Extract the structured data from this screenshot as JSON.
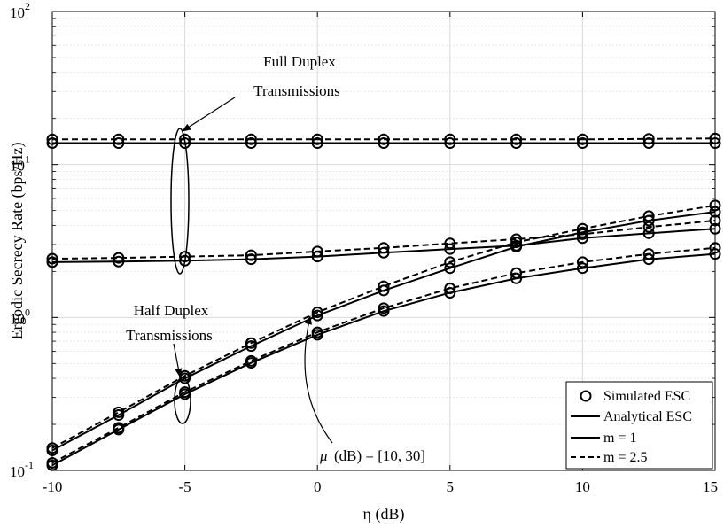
{
  "chart_data": {
    "type": "line",
    "title": "",
    "xlabel": "η (dB)",
    "ylabel": "Ergodic Secrecy Rate (bps/Hz)",
    "xlim": [
      -10,
      15
    ],
    "ylim": [
      0.1,
      100
    ],
    "y_scale": "log",
    "grid": true,
    "minor_grid": true,
    "x_ticks": [
      -10,
      -5,
      0,
      5,
      10,
      15
    ],
    "x_tick_labels": [
      "-10",
      "-5",
      "0",
      "5",
      "10",
      "15"
    ],
    "y_ticks": [
      0.1,
      1,
      10,
      100
    ],
    "y_tick_labels": [
      {
        "base": "10",
        "exp": "-1"
      },
      {
        "base": "10",
        "exp": "0"
      },
      {
        "base": "10",
        "exp": "1"
      },
      {
        "base": "10",
        "exp": "2"
      }
    ],
    "x": [
      -10,
      -7.5,
      -5,
      -2.5,
      0,
      2.5,
      5,
      7.5,
      10,
      12.5,
      15
    ],
    "series": [
      {
        "group": "full-duplex",
        "m": "1",
        "style": "solid",
        "values": [
          13.8,
          13.8,
          13.8,
          13.8,
          13.8,
          13.8,
          13.8,
          13.8,
          13.8,
          13.8,
          13.8
        ]
      },
      {
        "group": "full-duplex",
        "m": "2.5",
        "style": "dashed",
        "values": [
          14.6,
          14.6,
          14.6,
          14.6,
          14.6,
          14.6,
          14.6,
          14.6,
          14.6,
          14.7,
          14.8
        ]
      },
      {
        "group": "full-duplex",
        "m": "1",
        "style": "solid",
        "values": [
          2.3,
          2.32,
          2.35,
          2.4,
          2.5,
          2.65,
          2.8,
          2.95,
          3.3,
          3.55,
          3.8
        ]
      },
      {
        "group": "full-duplex",
        "m": "2.5",
        "style": "dashed",
        "values": [
          2.42,
          2.45,
          2.5,
          2.55,
          2.7,
          2.85,
          3.05,
          3.25,
          3.5,
          3.9,
          4.3
        ]
      },
      {
        "group": "half-duplex",
        "m": "1",
        "style": "solid",
        "values": [
          0.135,
          0.23,
          0.4,
          0.65,
          1.03,
          1.5,
          2.1,
          2.9,
          3.6,
          4.3,
          4.9
        ]
      },
      {
        "group": "half-duplex",
        "m": "2.5",
        "style": "dashed",
        "values": [
          0.14,
          0.24,
          0.415,
          0.68,
          1.08,
          1.6,
          2.3,
          3.1,
          3.8,
          4.6,
          5.4
        ]
      },
      {
        "group": "half-duplex",
        "m": "1",
        "style": "solid",
        "values": [
          0.108,
          0.185,
          0.315,
          0.505,
          0.77,
          1.1,
          1.45,
          1.8,
          2.1,
          2.4,
          2.6
        ]
      },
      {
        "group": "half-duplex",
        "m": "2.5",
        "style": "dashed",
        "values": [
          0.112,
          0.19,
          0.325,
          0.52,
          0.8,
          1.15,
          1.55,
          1.95,
          2.3,
          2.6,
          2.85
        ]
      }
    ],
    "annotations": {
      "full_duplex": [
        "Full Duplex",
        "Transmissions"
      ],
      "half_duplex": [
        "Half Duplex",
        "Transmissions"
      ],
      "mu_symbol": "μ",
      "mu_text": "(dB) = [10, 30]"
    },
    "legend": {
      "position": "bottom-right",
      "entries": [
        {
          "label": "Simulated ESC",
          "marker": "circle"
        },
        {
          "label": "Analytical ESC",
          "line": "solid"
        },
        {
          "label": "m = 1",
          "line": "solid"
        },
        {
          "label": "m = 2.5",
          "line": "dashed"
        }
      ]
    },
    "colors": {
      "lines": "#000000",
      "grid": "#e3e3e3",
      "background": "#ffffff"
    }
  }
}
